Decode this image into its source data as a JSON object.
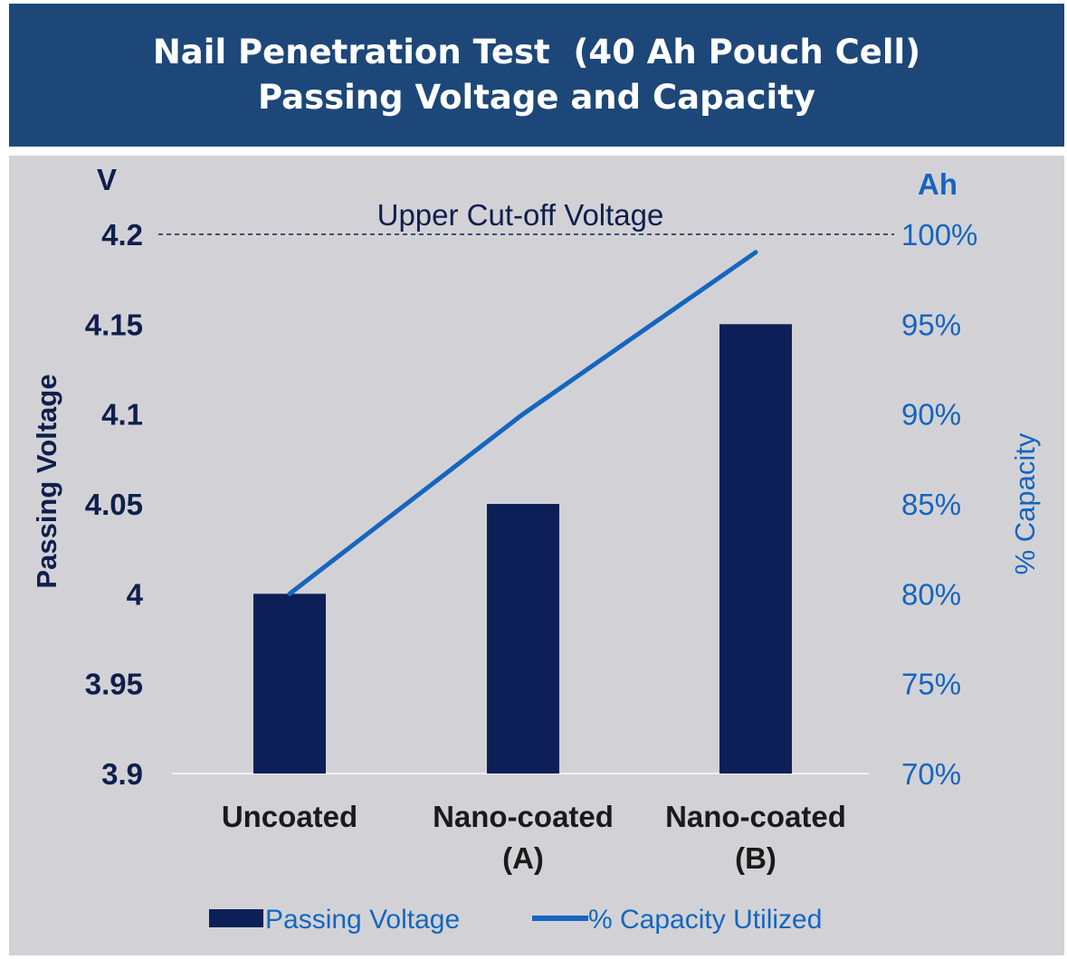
{
  "title": {
    "line1": "Nail Penetration Test  (40 Ah Pouch Cell)",
    "line2": "Passing Voltage and Capacity"
  },
  "colors": {
    "banner": "#1d4778",
    "plot_background": "#d2d2d6",
    "bar": "#0c1f57",
    "line": "#1565c0"
  },
  "chart_data": {
    "type": "bar",
    "categories": [
      [
        "Uncoated"
      ],
      [
        "Nano-coated",
        "(A)"
      ],
      [
        "Nano-coated",
        "(B)"
      ]
    ],
    "series": [
      {
        "name": "Passing Voltage",
        "type": "bar",
        "axis": "left",
        "values": [
          4.0,
          4.05,
          4.15
        ]
      },
      {
        "name": "% Capacity Utilized",
        "type": "line",
        "axis": "right",
        "values": [
          80,
          90,
          99
        ]
      }
    ],
    "y_left": {
      "label": "Passing Voltage",
      "unit": "V",
      "range": [
        3.9,
        4.2
      ],
      "ticks": [
        "3.9",
        "3.95",
        "4",
        "4.05",
        "4.1",
        "4.15",
        "4.2"
      ]
    },
    "y_right": {
      "label": "% Capacity",
      "unit": "Ah",
      "range": [
        70,
        100
      ],
      "ticks": [
        "70%",
        "75%",
        "80%",
        "85%",
        "90%",
        "95%",
        "100%"
      ]
    },
    "reference_line": {
      "label": "Upper Cut-off Voltage",
      "value": 4.2,
      "style": "dashed"
    },
    "legend": {
      "position": "bottom",
      "items": [
        "Passing Voltage",
        "% Capacity Utilized"
      ]
    },
    "grid": false
  }
}
